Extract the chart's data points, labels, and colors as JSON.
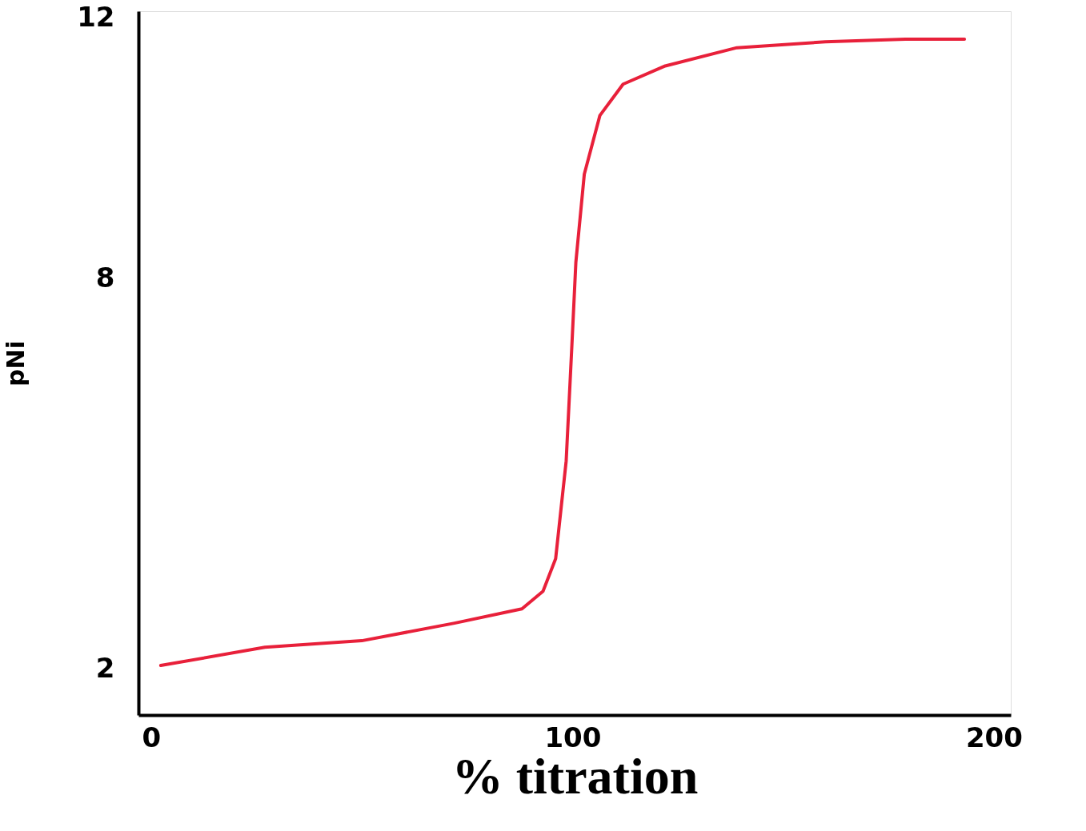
{
  "chart_data": {
    "type": "line",
    "xlabel": "% titration",
    "ylabel": "pNi",
    "x": [
      2.3,
      27,
      50,
      72,
      88,
      93,
      96,
      98.5,
      99.8,
      100.8,
      102.8,
      106.5,
      112,
      122,
      139,
      160,
      179,
      193
    ],
    "series": [
      {
        "color": "#e8203a",
        "values": [
          2.06,
          2.34,
          2.44,
          2.71,
          2.93,
          3.2,
          3.7,
          5.2,
          6.9,
          8.25,
          9.6,
          10.5,
          10.98,
          11.26,
          11.54,
          11.63,
          11.67,
          11.67
        ]
      }
    ],
    "xlim": [
      -3,
      204
    ],
    "ylim": [
      1.3,
      12.1
    ],
    "xticks": [
      0,
      100,
      200
    ],
    "yticks": [
      2,
      8,
      12
    ],
    "grid": false,
    "legend": false,
    "marker": "none",
    "line_style": "solid"
  }
}
